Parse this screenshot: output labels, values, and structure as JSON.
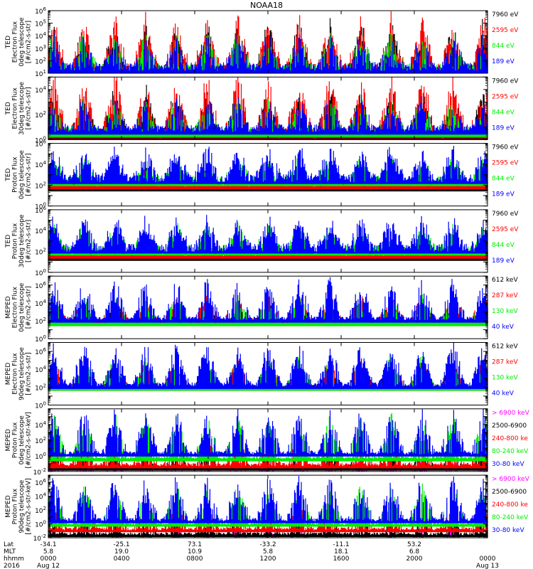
{
  "title": "NOAA18",
  "colors": {
    "black": "#000000",
    "red": "#ff0000",
    "green": "#00ee00",
    "blue": "#0000ff",
    "magenta": "#ff00ff",
    "axis": "#000000"
  },
  "chart_data": [
    {
      "type": "line",
      "instrument": "TED",
      "ylabel": [
        "TED",
        "Electron Flux",
        "0deg telescope",
        "[#/cm2-s-str]"
      ],
      "ylog": true,
      "ylim_exp": [
        1,
        6
      ],
      "ytick_exps": [
        1,
        2,
        3,
        4,
        5,
        6
      ],
      "series": [
        {
          "name": "7960 eV",
          "color": "black",
          "baseline_exp": 1.0,
          "noise": 0.8,
          "spikes": 0.55,
          "amp": 2.8
        },
        {
          "name": "2595 eV",
          "color": "red",
          "baseline_exp": 1.2,
          "noise": 0.8,
          "spikes": 0.45,
          "amp": 3.0
        },
        {
          "name": "844 eV",
          "color": "green",
          "baseline_exp": 1.3,
          "noise": 0.7,
          "spikes": 0.25,
          "amp": 2.0
        },
        {
          "name": "189 eV",
          "color": "blue",
          "baseline_exp": 1.4,
          "noise": 0.7,
          "spikes": 0.25,
          "amp": 1.8
        }
      ]
    },
    {
      "type": "line",
      "instrument": "TED",
      "ylabel": [
        "TED",
        "Electron Flux",
        "30deg telescope",
        "[#/cm2-s-str]"
      ],
      "ylog": true,
      "ylim_exp": [
        0,
        5
      ],
      "ytick_exps": [
        0,
        2,
        4
      ],
      "series": [
        {
          "name": "7960 eV",
          "color": "black",
          "baseline_exp": 0.3,
          "noise": 0.8,
          "spikes": 0.5,
          "amp": 2.6
        },
        {
          "name": "2595 eV",
          "color": "red",
          "baseline_exp": 0.5,
          "noise": 0.8,
          "spikes": 0.45,
          "amp": 3.2
        },
        {
          "name": "844 eV",
          "color": "green",
          "baseline_exp": 0.6,
          "noise": 0.6,
          "spikes": 0.2,
          "amp": 1.8
        },
        {
          "name": "189 eV",
          "color": "blue",
          "baseline_exp": 0.8,
          "noise": 0.6,
          "spikes": 0.2,
          "amp": 1.8
        }
      ]
    },
    {
      "type": "line",
      "instrument": "TED",
      "ylabel": [
        "TED",
        "Proton Flux",
        "0deg telescope",
        "[#/cm2-s-str]"
      ],
      "ylog": true,
      "ylim_exp": [
        0,
        6
      ],
      "ytick_exps": [
        0,
        2,
        4,
        6
      ],
      "series": [
        {
          "name": "7960 eV",
          "color": "black",
          "baseline_exp": 1.8,
          "noise": 0.6,
          "spikes": 0.25,
          "amp": 1.2
        },
        {
          "name": "2595 eV",
          "color": "red",
          "baseline_exp": 2.0,
          "noise": 0.5,
          "spikes": 0.2,
          "amp": 1.2
        },
        {
          "name": "844 eV",
          "color": "green",
          "baseline_exp": 2.3,
          "noise": 0.9,
          "spikes": 0.5,
          "amp": 1.5
        },
        {
          "name": "189 eV",
          "color": "blue",
          "baseline_exp": 2.5,
          "noise": 0.8,
          "spikes": 0.5,
          "amp": 2.3
        }
      ]
    },
    {
      "type": "line",
      "instrument": "TED",
      "ylabel": [
        "TED",
        "Proton Flux",
        "30deg telescope",
        "[#/cm2-s-str]"
      ],
      "ylog": true,
      "ylim_exp": [
        0,
        6
      ],
      "ytick_exps": [
        0,
        2,
        4,
        6
      ],
      "series": [
        {
          "name": "7960 eV",
          "color": "black",
          "baseline_exp": 1.5,
          "noise": 0.5,
          "spikes": 0.1,
          "amp": 0.8
        },
        {
          "name": "2595 eV",
          "color": "red",
          "baseline_exp": 1.7,
          "noise": 0.5,
          "spikes": 0.1,
          "amp": 0.8
        },
        {
          "name": "844 eV",
          "color": "green",
          "baseline_exp": 2.0,
          "noise": 0.9,
          "spikes": 0.5,
          "amp": 1.6
        },
        {
          "name": "189 eV",
          "color": "blue",
          "baseline_exp": 2.2,
          "noise": 0.8,
          "spikes": 0.5,
          "amp": 2.2
        }
      ]
    },
    {
      "type": "line",
      "instrument": "MEPED",
      "ylabel": [
        "MEPED",
        "Electron Flux",
        "0deg telescope",
        "[#/cm2-s-str]"
      ],
      "ylog": true,
      "ylim_exp": [
        0,
        7
      ],
      "ytick_exps": [
        0,
        2,
        4,
        6
      ],
      "series": [
        {
          "name": "612 keV",
          "color": "black",
          "baseline_exp": 2.0,
          "noise": 0.3,
          "spikes": 0.35,
          "amp": 1.5
        },
        {
          "name": "287 keV",
          "color": "red",
          "baseline_exp": 2.1,
          "noise": 0.3,
          "spikes": 0.35,
          "amp": 2.0
        },
        {
          "name": "130 keV",
          "color": "green",
          "baseline_exp": 1.8,
          "noise": 0.2,
          "spikes": 0.35,
          "amp": 2.2
        },
        {
          "name": "40 keV",
          "color": "blue",
          "baseline_exp": 2.2,
          "noise": 0.4,
          "spikes": 0.4,
          "amp": 3.2
        }
      ]
    },
    {
      "type": "line",
      "instrument": "MEPED",
      "ylabel": [
        "MEPED",
        "Electron Flux",
        "90deg telescope",
        "[#/cm2-s-str]"
      ],
      "ylog": true,
      "ylim_exp": [
        0,
        7
      ],
      "ytick_exps": [
        0,
        2,
        4,
        6
      ],
      "series": [
        {
          "name": "612 keV",
          "color": "black",
          "baseline_exp": 2.0,
          "noise": 0.4,
          "spikes": 0.5,
          "amp": 2.0
        },
        {
          "name": "287 keV",
          "color": "red",
          "baseline_exp": 2.0,
          "noise": 0.4,
          "spikes": 0.5,
          "amp": 2.2
        },
        {
          "name": "130 keV",
          "color": "green",
          "baseline_exp": 2.0,
          "noise": 0.4,
          "spikes": 0.5,
          "amp": 2.4
        },
        {
          "name": "40 keV",
          "color": "blue",
          "baseline_exp": 2.2,
          "noise": 0.5,
          "spikes": 0.5,
          "amp": 3.5
        }
      ]
    },
    {
      "type": "line",
      "instrument": "MEPED",
      "ylabel": [
        "MEPED",
        "Proton Flux",
        "0deg telescope",
        "[#/cm2-s-str-keV]"
      ],
      "ylog": true,
      "ylim_exp": [
        -2,
        6
      ],
      "ytick_exps": [
        -2,
        0,
        2,
        4
      ],
      "series": [
        {
          "name": "> 6900 keV",
          "color": "magenta",
          "baseline_exp": -2.5,
          "noise": 0.3,
          "spikes": 0.12,
          "amp": 1.5
        },
        {
          "name": "2500-6900",
          "color": "black",
          "baseline_exp": -1.5,
          "noise": 0.4,
          "spikes": 0.15,
          "amp": 1.5
        },
        {
          "name": "240-800 ke",
          "color": "red",
          "baseline_exp": -1.2,
          "noise": 0.4,
          "spikes": 0.2,
          "amp": 2.5
        },
        {
          "name": "80-240 keV",
          "color": "green",
          "baseline_exp": -0.3,
          "noise": 0.3,
          "spikes": 0.35,
          "amp": 4.0
        },
        {
          "name": "30-80 keV",
          "color": "blue",
          "baseline_exp": 0.3,
          "noise": 0.4,
          "spikes": 0.4,
          "amp": 4.0
        }
      ]
    },
    {
      "type": "line",
      "instrument": "MEPED",
      "ylabel": [
        "MEPED",
        "Proton Flux",
        "90deg telescope",
        "[#/cm2-s-str-keV]"
      ],
      "ylog": true,
      "ylim_exp": [
        -2,
        7
      ],
      "ytick_exps": [
        -2,
        0,
        2,
        4,
        6
      ],
      "series": [
        {
          "name": "> 6900 keV",
          "color": "magenta",
          "baseline_exp": -2.5,
          "noise": 0.3,
          "spikes": 0.12,
          "amp": 1.5
        },
        {
          "name": "2500-6900",
          "color": "black",
          "baseline_exp": -1.5,
          "noise": 0.4,
          "spikes": 0.15,
          "amp": 1.5
        },
        {
          "name": "240-800 ke",
          "color": "red",
          "baseline_exp": -0.8,
          "noise": 0.4,
          "spikes": 0.25,
          "amp": 2.5
        },
        {
          "name": "80-240 keV",
          "color": "green",
          "baseline_exp": 0.0,
          "noise": 0.4,
          "spikes": 0.35,
          "amp": 4.0
        },
        {
          "name": "30-80 keV",
          "color": "blue",
          "baseline_exp": 0.5,
          "noise": 0.5,
          "spikes": 0.45,
          "amp": 4.5
        }
      ]
    }
  ],
  "xaxis": {
    "row_labels": [
      "Lat",
      "MLT",
      "hhmm",
      "2016"
    ],
    "ticks": [
      {
        "frac": 0.0,
        "lat": "-34.1",
        "mlt": "5.8",
        "hhmm": "0000",
        "date": "Aug 12"
      },
      {
        "frac": 0.1667,
        "lat": "-25.1",
        "mlt": "19.0",
        "hhmm": "0400",
        "date": ""
      },
      {
        "frac": 0.3333,
        "lat": "73.1",
        "mlt": "10.9",
        "hhmm": "0800",
        "date": ""
      },
      {
        "frac": 0.5,
        "lat": "-33.2",
        "mlt": "5.8",
        "hhmm": "1200",
        "date": ""
      },
      {
        "frac": 0.6667,
        "lat": "-11.1",
        "mlt": "18.1",
        "hhmm": "1600",
        "date": ""
      },
      {
        "frac": 0.8333,
        "lat": "53.2",
        "mlt": "6.8",
        "hhmm": "2000",
        "date": ""
      },
      {
        "frac": 1.0,
        "lat": "",
        "mlt": "",
        "hhmm": "0000",
        "date": "Aug 13"
      }
    ]
  }
}
